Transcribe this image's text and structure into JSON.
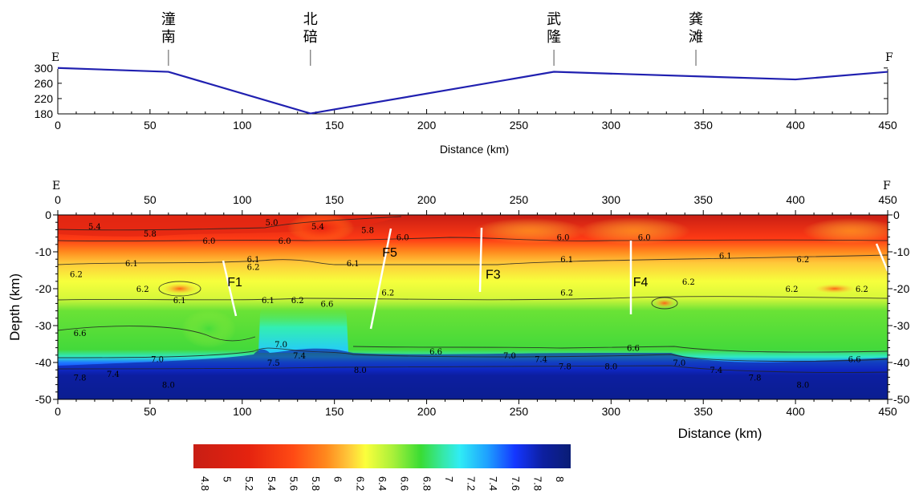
{
  "topo": {
    "end_left": "E",
    "end_right": "F",
    "stations": [
      {
        "name": "潼\n南",
        "km": 60
      },
      {
        "name": "北\n碚",
        "km": 137
      },
      {
        "name": "武\n隆",
        "km": 269
      },
      {
        "name": "龚\n滩",
        "km": 346
      }
    ],
    "xlabel": "Distance (km)",
    "xticks": [
      0,
      50,
      100,
      150,
      200,
      250,
      300,
      350,
      400,
      450
    ],
    "yticks": [
      180,
      220,
      260,
      300
    ],
    "ylim": [
      180,
      310
    ],
    "xlim": [
      0,
      450
    ],
    "color": "#2020b0"
  },
  "section": {
    "end_left": "E",
    "end_right": "F",
    "xlabel": "Distance (km)",
    "ylabel": "Depth (km)",
    "xticks": [
      0,
      50,
      100,
      150,
      200,
      250,
      300,
      350,
      400,
      450
    ],
    "yticks": [
      0,
      -10,
      -20,
      -30,
      -40,
      -50
    ],
    "xlim": [
      0,
      450
    ],
    "ylim": [
      -50,
      0
    ],
    "faults": [
      {
        "label": "F1",
        "km": 96,
        "depth": -18
      },
      {
        "label": "F5",
        "km": 180,
        "depth": -10
      },
      {
        "label": "F3",
        "km": 236,
        "depth": -16
      },
      {
        "label": "F4",
        "km": 316,
        "depth": -18
      }
    ],
    "contour_labels": [
      {
        "text": "5.4",
        "km": 20,
        "depth": -3
      },
      {
        "text": "5.0",
        "km": 116,
        "depth": -2
      },
      {
        "text": "5.4",
        "km": 141,
        "depth": -3
      },
      {
        "text": "5.8",
        "km": 50,
        "depth": -5
      },
      {
        "text": "5.8",
        "km": 168,
        "depth": -4
      },
      {
        "text": "6.0",
        "km": 82,
        "depth": -7
      },
      {
        "text": "6.0",
        "km": 123,
        "depth": -7
      },
      {
        "text": "6.0",
        "km": 187,
        "depth": -6
      },
      {
        "text": "6.0",
        "km": 274,
        "depth": -6
      },
      {
        "text": "6.0",
        "km": 318,
        "depth": -6
      },
      {
        "text": "6.1",
        "km": 40,
        "depth": -13
      },
      {
        "text": "6.1",
        "km": 106,
        "depth": -12
      },
      {
        "text": "6.2",
        "km": 106,
        "depth": -14
      },
      {
        "text": "6.1",
        "km": 160,
        "depth": -13
      },
      {
        "text": "6.1",
        "km": 276,
        "depth": -12
      },
      {
        "text": "6.1",
        "km": 362,
        "depth": -11
      },
      {
        "text": "6.2",
        "km": 404,
        "depth": -12
      },
      {
        "text": "6.2",
        "km": 10,
        "depth": -16
      },
      {
        "text": "6.2",
        "km": 46,
        "depth": -20
      },
      {
        "text": "6.1",
        "km": 66,
        "depth": -23
      },
      {
        "text": "6.1",
        "km": 114,
        "depth": -23
      },
      {
        "text": "6.2",
        "km": 130,
        "depth": -23
      },
      {
        "text": "6.2",
        "km": 179,
        "depth": -21
      },
      {
        "text": "6.2",
        "km": 276,
        "depth": -21
      },
      {
        "text": "6.2",
        "km": 342,
        "depth": -18
      },
      {
        "text": "6.2",
        "km": 398,
        "depth": -20
      },
      {
        "text": "6.2",
        "km": 436,
        "depth": -20
      },
      {
        "text": "6.6",
        "km": 12,
        "depth": -32
      },
      {
        "text": "6.6",
        "km": 146,
        "depth": -24
      },
      {
        "text": "6.6",
        "km": 205,
        "depth": -37
      },
      {
        "text": "6.6",
        "km": 312,
        "depth": -36
      },
      {
        "text": "6.6",
        "km": 432,
        "depth": -39
      },
      {
        "text": "7.0",
        "km": 54,
        "depth": -39
      },
      {
        "text": "7.0",
        "km": 121,
        "depth": -35
      },
      {
        "text": "7.0",
        "km": 245,
        "depth": -38
      },
      {
        "text": "7.0",
        "km": 337,
        "depth": -40
      },
      {
        "text": "7.4",
        "km": 131,
        "depth": -38
      },
      {
        "text": "7.4",
        "km": 30,
        "depth": -43
      },
      {
        "text": "7.4",
        "km": 262,
        "depth": -39
      },
      {
        "text": "7.4",
        "km": 357,
        "depth": -42
      },
      {
        "text": "7.5",
        "km": 117,
        "depth": -40
      },
      {
        "text": "7.8",
        "km": 12,
        "depth": -44
      },
      {
        "text": "7.8",
        "km": 275,
        "depth": -41
      },
      {
        "text": "7.8",
        "km": 378,
        "depth": -44
      },
      {
        "text": "8.0",
        "km": 164,
        "depth": -42
      },
      {
        "text": "8.0",
        "km": 60,
        "depth": -46
      },
      {
        "text": "8.0",
        "km": 300,
        "depth": -41
      },
      {
        "text": "8.0",
        "km": 404,
        "depth": -46
      }
    ]
  },
  "colorbar": {
    "ticks": [
      "4.8",
      "5",
      "5.2",
      "5.4",
      "5.6",
      "5.8",
      "6",
      "6.2",
      "6.4",
      "6.6",
      "6.8",
      "7",
      "7.2",
      "7.4",
      "7.6",
      "7.8",
      "8"
    ],
    "range": [
      4.7,
      8.1
    ],
    "stops": [
      {
        "v": 4.7,
        "c": "#c81e14"
      },
      {
        "v": 5.2,
        "c": "#e5230f"
      },
      {
        "v": 5.6,
        "c": "#ff4a14"
      },
      {
        "v": 5.9,
        "c": "#ff8a1e"
      },
      {
        "v": 6.1,
        "c": "#ffc83a"
      },
      {
        "v": 6.25,
        "c": "#fbff3c"
      },
      {
        "v": 6.5,
        "c": "#a8f03a"
      },
      {
        "v": 6.75,
        "c": "#39dc34"
      },
      {
        "v": 6.95,
        "c": "#36e8a8"
      },
      {
        "v": 7.1,
        "c": "#30ecf5"
      },
      {
        "v": 7.35,
        "c": "#1ea0ff"
      },
      {
        "v": 7.6,
        "c": "#1436ff"
      },
      {
        "v": 7.85,
        "c": "#0d1fa0"
      },
      {
        "v": 8.1,
        "c": "#0a1d75"
      }
    ]
  },
  "chart_data": [
    {
      "type": "line",
      "xlabel": "Distance (km)",
      "ylabel": "",
      "x": [
        0,
        60,
        137,
        269,
        400,
        450
      ],
      "y": [
        300,
        290,
        181,
        290,
        270,
        290
      ],
      "xlim": [
        0,
        450
      ],
      "ylim": [
        180,
        310
      ],
      "grid": false
    },
    {
      "type": "heatmap",
      "xlabel": "Distance (km)",
      "ylabel": "Depth (km)",
      "xlim": [
        0,
        450
      ],
      "ylim": [
        -50,
        0
      ],
      "colorbar_range": [
        4.8,
        8.0
      ],
      "layers": [
        {
          "depth_top": 0,
          "depth_bottom": -6,
          "value": 5.2
        },
        {
          "depth_top": -6,
          "depth_bottom": -12,
          "value": 6.0
        },
        {
          "depth_top": -12,
          "depth_bottom": -22,
          "value": 6.2
        },
        {
          "depth_top": -22,
          "depth_bottom": -37,
          "value": 6.6
        },
        {
          "depth_top": -37,
          "depth_bottom": -43,
          "value": 7.5
        },
        {
          "depth_top": -43,
          "depth_bottom": -50,
          "value": 8.0
        }
      ]
    }
  ]
}
